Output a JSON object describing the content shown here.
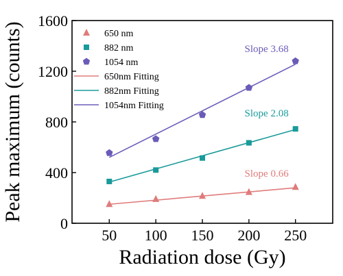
{
  "chart_data": {
    "type": "scatter",
    "xlabel": "Radiation dose (Gy)",
    "ylabel": "Peak maximum (counts)",
    "xlim": [
      10,
      290
    ],
    "ylim": [
      0,
      1600
    ],
    "xticks": [
      50,
      100,
      150,
      200,
      250
    ],
    "yticks": [
      0,
      400,
      800,
      1200,
      1600
    ],
    "grid": false,
    "legend_position": "top-left",
    "x": [
      50,
      100,
      150,
      200,
      250
    ],
    "series": [
      {
        "name": "650 nm",
        "marker": "triangle",
        "color": "#e07b7b",
        "values": [
          150,
          190,
          215,
          245,
          285
        ]
      },
      {
        "name": "882 nm",
        "marker": "square",
        "color": "#1a9a9a",
        "values": [
          330,
          420,
          515,
          635,
          745
        ]
      },
      {
        "name": "1054 nm",
        "marker": "pentagon",
        "color": "#6b5bb8",
        "values": [
          555,
          665,
          855,
          1070,
          1280
        ]
      }
    ],
    "fits": [
      {
        "name": "650nm Fitting",
        "color": "#e07b7b",
        "start": [
          50,
          150
        ],
        "end": [
          250,
          280
        ]
      },
      {
        "name": "882nm Fitting",
        "color": "#1a9a9a",
        "start": [
          50,
          325
        ],
        "end": [
          250,
          740
        ]
      },
      {
        "name": "1054nm Fitting",
        "color": "#6b5bb8",
        "start": [
          50,
          520
        ],
        "end": [
          250,
          1255
        ]
      }
    ],
    "annotations": [
      {
        "text": "Slope 3.68",
        "color": "#6b5bb8"
      },
      {
        "text": "Slope 2.08",
        "color": "#1a9a9a"
      },
      {
        "text": "Slope 0.66",
        "color": "#e07b7b"
      }
    ]
  }
}
